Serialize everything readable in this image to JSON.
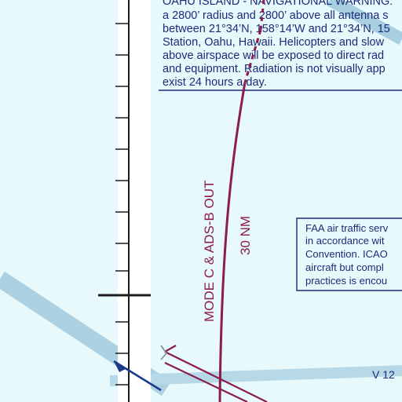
{
  "map": {
    "warning_lines": [
      "OAHU ISLAND - NAVIGATIONAL WARNING:",
      "a 2800’ radius and 2800’ above all antenna s",
      "between 21°34’N, 158°14’W and 21°34’N, 15",
      "Station, Oahu, Hawaii. Helicopters and slow",
      "above airspace will be exposed to direct rad",
      "and equipment. Radiation is not visually app",
      "exist 24 hours a day."
    ],
    "faa_note_lines": [
      "FAA air traffic serv",
      "in accordance wit",
      "Convention. ICAO",
      "aircraft but compl",
      "practices is encou"
    ],
    "mode_c_label": "MODE C & ADS-B OUT",
    "mode_c_radius": "30 NM",
    "airway_label": "V 12",
    "colors": {
      "background": "#e8f9fb",
      "mode_c_arc": "#8b1d4a",
      "airway": "#a8cfe0",
      "text": "#1a2b7a"
    }
  }
}
